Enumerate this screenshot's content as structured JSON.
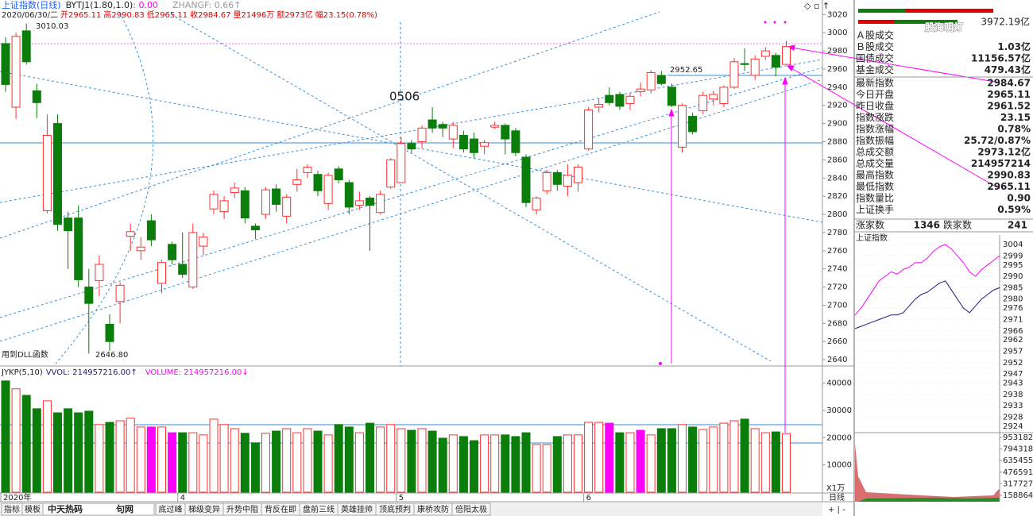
{
  "header": {
    "indicator": [
      "上证指数(日线)",
      "BYTJ1(1.80,1.0)",
      ": 0.00",
      "ZHANGF: 0.66↑"
    ],
    "info": [
      "2020/06/30/二",
      "开2965.11",
      "高2990.83",
      "低2965.11",
      "收2984.67",
      "量21496万",
      "额2973亿",
      "幅23.15(0.78%)"
    ]
  },
  "annotations": {
    "high": "3010.03",
    "low": "2646.80",
    "date": "0506",
    "level": "2952.65",
    "dll": "用到DLL函数",
    "period": "日线",
    "unit": "X1万"
  },
  "volume_header": [
    "JYKP(5,10)",
    "VVOL: 214957216.00↑",
    "VOLUME: 214957216.00↓"
  ],
  "chart_data": [
    {
      "type": "candlestick",
      "up_color": "#ff3030",
      "down_color": "#0b7d0b",
      "categories": [
        "2020年",
        null,
        null,
        null,
        null,
        null,
        null,
        null,
        null,
        null,
        null,
        null,
        null,
        null,
        null,
        null,
        null,
        "4",
        null,
        null,
        null,
        null,
        null,
        null,
        null,
        null,
        null,
        null,
        null,
        null,
        null,
        null,
        null,
        null,
        null,
        null,
        null,
        null,
        "5",
        null,
        null,
        null,
        null,
        null,
        null,
        null,
        null,
        null,
        null,
        null,
        null,
        null,
        null,
        null,
        null,
        null,
        "6",
        null,
        null,
        null,
        null,
        null,
        null,
        null,
        null,
        null,
        null,
        null,
        null,
        null,
        null,
        null,
        null,
        null,
        null,
        null
      ],
      "open": [
        2988,
        2918,
        3002,
        2936,
        2804,
        2900,
        2796,
        2796,
        2720,
        2727,
        2679,
        2704,
        2776,
        2760,
        2793,
        2724,
        2767,
        2745,
        2720,
        2765,
        2806,
        2803,
        2824,
        2826,
        2787,
        2800,
        2828,
        2798,
        2833,
        2846,
        2844,
        2812,
        2850,
        2835,
        2810,
        2818,
        2802,
        2830,
        2835,
        2878,
        2880,
        2904,
        2899,
        2883,
        2887,
        2883,
        2875,
        2896,
        2898,
        2892,
        2863,
        2805,
        2826,
        2846,
        2831,
        2835,
        2872,
        2918,
        2931,
        2932,
        2922,
        2935,
        2937,
        2953,
        2940,
        2874,
        2908,
        2914,
        2927,
        2922,
        2940,
        2966,
        2953,
        2974,
        2975,
        2965.11
      ],
      "high": [
        2995,
        3000,
        3010.03,
        2944,
        2910,
        2910,
        2803,
        2810,
        2740,
        2755,
        2690,
        2725,
        2790,
        2775,
        2800,
        2750,
        2770,
        2780,
        2790,
        2780,
        2826,
        2820,
        2835,
        2830,
        2790,
        2830,
        2833,
        2822,
        2850,
        2855,
        2848,
        2846,
        2853,
        2838,
        2825,
        2820,
        2826,
        2862,
        2885,
        2882,
        2898,
        2918,
        2902,
        2902,
        2892,
        2890,
        2882,
        2902,
        2900,
        2895,
        2866,
        2820,
        2849,
        2849,
        2855,
        2855,
        2918,
        2928,
        2940,
        2935,
        2933,
        2945,
        2959,
        2958,
        2944,
        2922,
        2912,
        2935,
        2936,
        2942,
        2972,
        2983,
        2975,
        2984,
        2978,
        2990.83
      ],
      "low": [
        2935,
        2905,
        2965,
        2906,
        2801,
        2782,
        2740,
        2720,
        2646.8,
        2710,
        2650,
        2680,
        2760,
        2750,
        2765,
        2713,
        2745,
        2730,
        2718,
        2755,
        2800,
        2795,
        2818,
        2790,
        2773,
        2795,
        2803,
        2790,
        2825,
        2840,
        2820,
        2805,
        2834,
        2800,
        2805,
        2760,
        2800,
        2828,
        2835,
        2868,
        2873,
        2890,
        2885,
        2873,
        2868,
        2862,
        2866,
        2894,
        2866,
        2864,
        2808,
        2800,
        2822,
        2826,
        2820,
        2825,
        2870,
        2912,
        2920,
        2915,
        2915,
        2930,
        2933,
        2942,
        2918,
        2868,
        2888,
        2910,
        2920,
        2918,
        2938,
        2958,
        2948,
        2970,
        2952,
        2965.11
      ],
      "close": [
        2943,
        2996,
        2968,
        2923,
        2887,
        2789,
        2782,
        2728,
        2702,
        2745,
        2660,
        2722,
        2781,
        2764,
        2772,
        2747,
        2750,
        2734,
        2780,
        2775,
        2822,
        2815,
        2829,
        2796,
        2783,
        2827,
        2811,
        2819,
        2838,
        2852,
        2826,
        2843,
        2838,
        2808,
        2815,
        2810,
        2822,
        2860,
        2878,
        2872,
        2895,
        2895,
        2895,
        2898,
        2872,
        2868,
        2879,
        2898,
        2883,
        2868,
        2813,
        2818,
        2846,
        2833,
        2843,
        2852,
        2915,
        2921,
        2923,
        2919,
        2930,
        2938,
        2956,
        2944,
        2920,
        2920,
        2891,
        2931,
        2932,
        2940,
        2968,
        2965,
        2971,
        2980,
        2962,
        2984.67
      ],
      "ylim": [
        2634,
        3029
      ],
      "yticks": [
        3020,
        3000,
        2980,
        2960,
        2940,
        2920,
        2900,
        2880,
        2860,
        2840,
        2820,
        2800,
        2780,
        2760,
        2740,
        2720,
        2700,
        2680,
        2660,
        2640
      ]
    },
    {
      "type": "bar",
      "values": [
        40800,
        37900,
        35500,
        30600,
        33500,
        29100,
        30600,
        29100,
        29700,
        24800,
        25600,
        26200,
        27100,
        23900,
        23900,
        23900,
        21800,
        21800,
        21800,
        21000,
        26800,
        24800,
        23300,
        21600,
        18100,
        21600,
        22400,
        23300,
        21800,
        23300,
        22400,
        21000,
        24800,
        23900,
        21800,
        25300,
        23900,
        24800,
        23300,
        22700,
        23300,
        22400,
        19800,
        21000,
        20400,
        18900,
        21000,
        21000,
        21000,
        20400,
        21800,
        17500,
        17500,
        20400,
        21000,
        21000,
        25600,
        25600,
        25300,
        21800,
        21800,
        22700,
        21000,
        23300,
        23300,
        24800,
        23900,
        23000,
        23900,
        25300,
        26200,
        26800,
        23300,
        21800,
        22100,
        21496
      ],
      "colors": [
        "#0b7d0b",
        "#ff3030",
        "#0b7d0b",
        "#0b7d0b",
        "#ff3030",
        "#0b7d0b",
        "#0b7d0b",
        "#0b7d0b",
        "#0b7d0b",
        "#ff3030",
        "#0b7d0b",
        "#ff3030",
        "#ff3030",
        "#ff3030",
        "#ff00ff",
        "#ff3030",
        "#ff00ff",
        "#0b7d0b",
        "#ff3030",
        "#ff3030",
        "#ff3030",
        "#ff3030",
        "#ff3030",
        "#0b7d0b",
        "#0b7d0b",
        "#ff3030",
        "#0b7d0b",
        "#ff3030",
        "#ff3030",
        "#ff3030",
        "#0b7d0b",
        "#ff3030",
        "#0b7d0b",
        "#0b7d0b",
        "#ff3030",
        "#0b7d0b",
        "#ff3030",
        "#ff3030",
        "#ff3030",
        "#0b7d0b",
        "#ff3030",
        "#0b7d0b",
        "#0b7d0b",
        "#ff3030",
        "#0b7d0b",
        "#0b7d0b",
        "#ff3030",
        "#ff3030",
        "#0b7d0b",
        "#0b7d0b",
        "#0b7d0b",
        "#ff3030",
        "#ff3030",
        "#0b7d0b",
        "#ff3030",
        "#ff3030",
        "#ff3030",
        "#ff3030",
        "#ff00ff",
        "#0b7d0b",
        "#ff3030",
        "#ff00ff",
        "#ff3030",
        "#0b7d0b",
        "#0b7d0b",
        "#ff3030",
        "#0b7d0b",
        "#ff3030",
        "#ff3030",
        "#ff3030",
        "#ff3030",
        "#0b7d0b",
        "#ff3030",
        "#ff3030",
        "#0b7d0b",
        "#ff3030"
      ],
      "ylim": [
        0,
        45700
      ],
      "yticks": [
        40000,
        30000,
        20000,
        10000
      ]
    },
    {
      "type": "line",
      "title": "上证指数",
      "series": [
        {
          "color": "#ff00ff",
          "values": [
            2973,
            2976,
            2980,
            2984,
            2988,
            2990,
            2992,
            2991,
            2993,
            2994,
            2996,
            2996,
            2998,
            3001,
            3003,
            3004,
            3002,
            2999,
            2996,
            2992,
            2990,
            2993,
            2995,
            2997,
            2999
          ]
        },
        {
          "color": "#1a1a80",
          "values": [
            2967,
            2968,
            2969,
            2970,
            2971,
            2972,
            2973,
            2973,
            2974,
            2977,
            2980,
            2982,
            2983,
            2985,
            2987,
            2988,
            2984,
            2980,
            2976,
            2974,
            2977,
            2980,
            2982,
            2984,
            2985
          ]
        }
      ],
      "ylim": [
        2921.9,
        3006.8
      ],
      "yticks": [
        3004,
        2999,
        2995,
        2990,
        2985,
        2980,
        2976,
        2971,
        2966,
        2962,
        2957,
        2952,
        2947,
        2943,
        2938,
        2933,
        2928,
        2924
      ],
      "y2lim": [
        72000,
        1018000
      ],
      "y2ticks": [
        953182,
        794318,
        635455,
        476591,
        317727,
        158864
      ]
    }
  ],
  "watermark": "股海明灯",
  "top_value": "3972.19亿",
  "quote_panel": {
    "rows": [
      {
        "label": "Ａ股成交"
      },
      {
        "label": "Ｂ股成交",
        "value": "1.03亿",
        "color": "#e00000"
      },
      {
        "label": "国债成交",
        "value": "11156.57亿",
        "color": "#e00000"
      },
      {
        "label": "基金成交",
        "value": "479.43亿",
        "color": "#e00000"
      },
      {
        "label": "最新指数",
        "value": "2984.67",
        "color": "#e00000"
      },
      {
        "label": "今日开盘",
        "value": "2965.11",
        "color": "#e00000"
      },
      {
        "label": "昨日收盘",
        "value": "2961.52",
        "color": "#000000"
      },
      {
        "label": "指数涨跌",
        "value": "23.15",
        "color": "#e00000"
      },
      {
        "label": "指数涨幅",
        "value": "0.78%",
        "color": "#e00000"
      },
      {
        "label": "指数振幅",
        "value": "25.72/0.87%",
        "color": "#000000"
      },
      {
        "label": "总成交额",
        "value": "2973.12亿",
        "color": "#e00000"
      },
      {
        "label": "总成交量",
        "value": "214957214",
        "color": "#e00000"
      },
      {
        "label": "最高指数",
        "value": "2990.83",
        "color": "#e00000"
      },
      {
        "label": "最低指数",
        "value": "2965.11",
        "color": "#e00000"
      },
      {
        "label": "指数量比",
        "value": "0.90",
        "color": "#008000"
      },
      {
        "label": "上证换手",
        "value": "0.59%",
        "color": "#000000"
      }
    ],
    "breadth": [
      {
        "label": "涨家数",
        "value": "1346",
        "color": "#e00000"
      },
      {
        "label": "跌家数",
        "value": "241",
        "color": "#008000"
      }
    ]
  },
  "logo": [
    "中天热码",
    "句网"
  ],
  "tabs": [
    "指标",
    "模板",
    "底过峰",
    "梯级变异",
    "升势中阻",
    "背反在即",
    "盘前三线",
    "英雄挂帅",
    "顶底预判",
    "康桥攻防",
    "倍阳太极"
  ]
}
